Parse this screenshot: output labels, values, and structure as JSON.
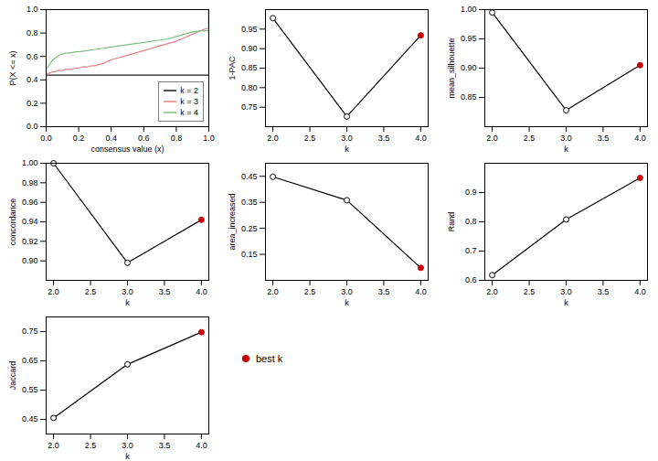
{
  "chart_data": [
    {
      "type": "line",
      "x_label": "consensus value (x)",
      "y_label": "P(X <= x)",
      "xlim": [
        0,
        1
      ],
      "ylim": [
        0,
        1
      ],
      "xticks": [
        {
          "value": 0,
          "label": "0.0"
        },
        0.2,
        0.4,
        0.6,
        0.8,
        {
          "value": 1,
          "label": "1.0"
        }
      ],
      "yticks": [
        {
          "value": 0,
          "label": "0.0"
        },
        0.2,
        0.4,
        0.6,
        0.8,
        {
          "value": 1,
          "label": "1.0"
        }
      ],
      "grid": false,
      "legend": "lower right",
      "series": [
        {
          "name": "k = 2",
          "color": "#1a1a1a",
          "x": [
            0.0,
            0.0,
            0.02,
            0.04,
            0.06,
            0.08,
            0.1,
            0.15,
            0.2,
            0.25,
            0.3,
            0.35,
            0.4,
            0.45,
            0.5,
            0.55,
            0.6,
            0.65,
            0.7,
            0.75,
            0.8,
            0.85,
            0.9,
            0.95,
            0.99,
            1.0,
            1.0
          ],
          "values": [
            0.0,
            0.44,
            0.44,
            0.44,
            0.44,
            0.44,
            0.44,
            0.44,
            0.44,
            0.44,
            0.44,
            0.44,
            0.44,
            0.44,
            0.44,
            0.44,
            0.44,
            0.44,
            0.44,
            0.44,
            0.44,
            0.44,
            0.44,
            0.44,
            0.44,
            0.44,
            1.0
          ]
        },
        {
          "name": "k = 3",
          "color": "#e08080",
          "x": [
            0.0,
            0.0,
            0.01,
            0.02,
            0.03,
            0.04,
            0.05,
            0.06,
            0.07,
            0.08,
            0.09,
            0.1,
            0.12,
            0.15,
            0.18,
            0.2,
            0.22,
            0.25,
            0.28,
            0.3,
            0.32,
            0.35,
            0.38,
            0.4,
            0.42,
            0.45,
            0.5,
            0.55,
            0.6,
            0.65,
            0.7,
            0.75,
            0.8,
            0.85,
            0.9,
            0.95,
            0.99,
            1.0,
            1.0
          ],
          "values": [
            0.0,
            0.45,
            0.45,
            0.46,
            0.46,
            0.47,
            0.47,
            0.47,
            0.48,
            0.48,
            0.48,
            0.48,
            0.49,
            0.49,
            0.5,
            0.5,
            0.51,
            0.51,
            0.52,
            0.52,
            0.53,
            0.54,
            0.56,
            0.57,
            0.58,
            0.59,
            0.61,
            0.63,
            0.65,
            0.67,
            0.69,
            0.71,
            0.73,
            0.76,
            0.79,
            0.82,
            0.84,
            0.84,
            1.0
          ]
        },
        {
          "name": "k = 4",
          "color": "#80c080",
          "x": [
            0.0,
            0.0,
            0.01,
            0.02,
            0.03,
            0.04,
            0.05,
            0.06,
            0.07,
            0.08,
            0.09,
            0.1,
            0.12,
            0.15,
            0.18,
            0.2,
            0.25,
            0.3,
            0.35,
            0.4,
            0.45,
            0.5,
            0.55,
            0.6,
            0.65,
            0.7,
            0.75,
            0.8,
            0.85,
            0.9,
            0.95,
            0.99,
            1.0,
            1.0
          ],
          "values": [
            0.0,
            0.5,
            0.51,
            0.53,
            0.55,
            0.57,
            0.58,
            0.59,
            0.6,
            0.61,
            0.62,
            0.62,
            0.63,
            0.63,
            0.64,
            0.64,
            0.65,
            0.66,
            0.67,
            0.68,
            0.69,
            0.7,
            0.71,
            0.72,
            0.73,
            0.74,
            0.75,
            0.77,
            0.79,
            0.81,
            0.82,
            0.82,
            0.82,
            1.0
          ]
        }
      ]
    },
    {
      "type": "line",
      "x_label": "k",
      "y_label": "1-PAC",
      "x": [
        2,
        3,
        4
      ],
      "xlim": [
        1.9,
        4.1
      ],
      "ylim": [
        0.7,
        1.0
      ],
      "xticks": [
        {
          "value": 2,
          "label": "2.0"
        },
        2.5,
        {
          "value": 3,
          "label": "3.0"
        },
        3.5,
        {
          "value": 4,
          "label": "4.0"
        }
      ],
      "yticks": [
        0.75,
        {
          "value": 0.8,
          "label": "0.80"
        },
        0.85,
        {
          "value": 0.9,
          "label": "0.90"
        },
        0.95
      ],
      "grid": false,
      "best_k": {
        "value": 4,
        "color": "#cc0000"
      },
      "series": [
        {
          "color": "black",
          "marker": "circle",
          "values": [
            0.978,
            0.726,
            0.934
          ]
        }
      ]
    },
    {
      "type": "line",
      "x_label": "k",
      "y_label": "mean_silhouette",
      "x": [
        2,
        3,
        4
      ],
      "xlim": [
        1.9,
        4.1
      ],
      "ylim": [
        0.8,
        1.0
      ],
      "xticks": [
        {
          "value": 2,
          "label": "2.0"
        },
        2.5,
        {
          "value": 3,
          "label": "3.0"
        },
        3.5,
        {
          "value": 4,
          "label": "4.0"
        }
      ],
      "yticks": [
        0.85,
        {
          "value": 0.9,
          "label": "0.90"
        },
        0.95,
        {
          "value": 1,
          "label": "1.00"
        }
      ],
      "grid": false,
      "best_k": {
        "value": 4,
        "color": "#cc0000"
      },
      "series": [
        {
          "color": "black",
          "marker": "circle",
          "values": [
            0.995,
            0.828,
            0.905
          ]
        }
      ]
    },
    {
      "type": "line",
      "x_label": "k",
      "y_label": "concordance",
      "x": [
        2,
        3,
        4
      ],
      "xlim": [
        1.9,
        4.1
      ],
      "ylim": [
        0.88,
        1.0
      ],
      "xticks": [
        {
          "value": 2,
          "label": "2.0"
        },
        2.5,
        {
          "value": 3,
          "label": "3.0"
        },
        3.5,
        {
          "value": 4,
          "label": "4.0"
        }
      ],
      "yticks": [
        {
          "value": 0.9,
          "label": "0.90"
        },
        0.92,
        0.94,
        0.96,
        0.98,
        {
          "value": 1,
          "label": "1.00"
        }
      ],
      "grid": false,
      "best_k": {
        "value": 4,
        "color": "#cc0000"
      },
      "series": [
        {
          "color": "black",
          "marker": "circle",
          "values": [
            1.0,
            0.898,
            0.942
          ]
        }
      ]
    },
    {
      "type": "line",
      "x_label": "k",
      "y_label": "area_increased",
      "x": [
        2,
        3,
        4
      ],
      "xlim": [
        1.9,
        4.1
      ],
      "ylim": [
        0.05,
        0.5
      ],
      "xticks": [
        {
          "value": 2,
          "label": "2.0"
        },
        2.5,
        {
          "value": 3,
          "label": "3.0"
        },
        3.5,
        {
          "value": 4,
          "label": "4.0"
        }
      ],
      "yticks": [
        0.15,
        0.25,
        0.35,
        0.45
      ],
      "grid": false,
      "best_k": {
        "value": 4,
        "color": "#cc0000"
      },
      "series": [
        {
          "color": "black",
          "marker": "circle",
          "values": [
            0.448,
            0.358,
            0.098
          ]
        }
      ]
    },
    {
      "type": "line",
      "x_label": "k",
      "y_label": "Rand",
      "x": [
        2,
        3,
        4
      ],
      "xlim": [
        1.9,
        4.1
      ],
      "ylim": [
        0.6,
        1.0
      ],
      "xticks": [
        {
          "value": 2,
          "label": "2.0"
        },
        2.5,
        {
          "value": 3,
          "label": "3.0"
        },
        3.5,
        {
          "value": 4,
          "label": "4.0"
        }
      ],
      "yticks": [
        0.6,
        0.7,
        0.8,
        0.9
      ],
      "grid": false,
      "best_k": {
        "value": 4,
        "color": "#cc0000"
      },
      "series": [
        {
          "color": "black",
          "marker": "circle",
          "values": [
            0.618,
            0.808,
            0.95
          ]
        }
      ]
    },
    {
      "type": "line",
      "x_label": "k",
      "y_label": "Jaccard",
      "x": [
        2,
        3,
        4
      ],
      "xlim": [
        1.9,
        4.1
      ],
      "ylim": [
        0.4,
        0.8
      ],
      "xticks": [
        {
          "value": 2,
          "label": "2.0"
        },
        2.5,
        {
          "value": 3,
          "label": "3.0"
        },
        3.5,
        {
          "value": 4,
          "label": "4.0"
        }
      ],
      "yticks": [
        0.45,
        0.55,
        0.65,
        0.75
      ],
      "grid": false,
      "best_k": {
        "value": 4,
        "color": "#cc0000"
      },
      "series": [
        {
          "color": "black",
          "marker": "circle",
          "values": [
            0.455,
            0.638,
            0.748
          ]
        }
      ]
    },
    {
      "type": "legend",
      "series": [
        {
          "name": "best k",
          "color": "#cc0000",
          "marker": "circle"
        }
      ]
    }
  ]
}
